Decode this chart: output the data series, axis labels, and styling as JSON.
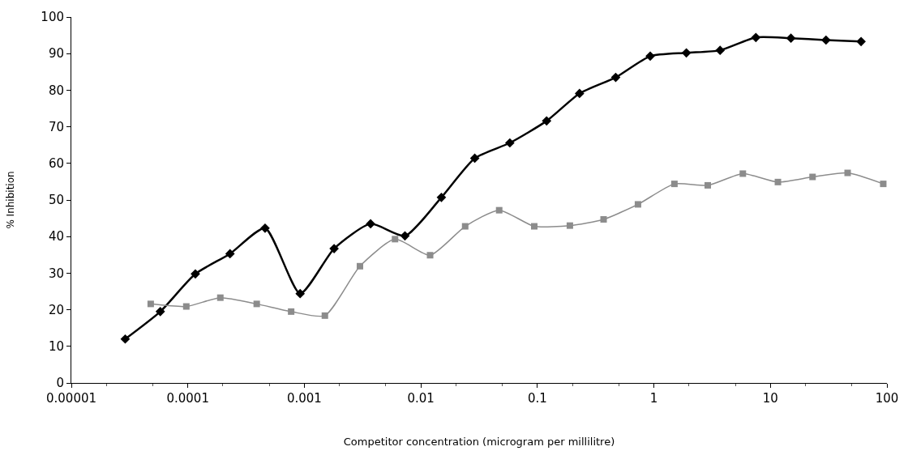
{
  "chart_data": {
    "type": "line",
    "xlabel": "Competitor concentration (microgram per millilitre)",
    "ylabel": "% Inhibition",
    "log": "x",
    "xlim": [
      1e-05,
      100
    ],
    "xticks": [
      {
        "value": 1e-05,
        "label": "0.00001"
      },
      0.0001,
      0.001,
      0.01,
      0.1,
      1,
      10,
      100
    ],
    "ylim": [
      0,
      100
    ],
    "yticks": [
      0,
      10,
      20,
      30,
      40,
      50,
      60,
      70,
      80,
      90,
      100
    ],
    "series": [
      {
        "color": "#000000",
        "marker": "diamond",
        "x": [
          2.9e-05,
          5.8e-05,
          0.000116,
          0.00023,
          0.00046,
          0.00092,
          0.0018,
          0.0037,
          0.0073,
          0.015,
          0.029,
          0.058,
          0.12,
          0.23,
          0.47,
          0.93,
          1.9,
          3.7,
          7.5,
          15,
          30,
          60
        ],
        "values": [
          12,
          19.5,
          29.8,
          35.3,
          42.3,
          24.4,
          36.7,
          43.5,
          40.2,
          50.7,
          61.4,
          65.6,
          71.6,
          79.1,
          83.5,
          89.3,
          90.2,
          90.9,
          94.4,
          94.2,
          93.7,
          93.3
        ]
      },
      {
        "color": "#8c8c8c",
        "marker": "square",
        "x": [
          4.8e-05,
          9.7e-05,
          0.00019,
          0.00039,
          0.00077,
          0.0015,
          0.003,
          0.006,
          0.012,
          0.024,
          0.047,
          0.094,
          0.19,
          0.37,
          0.73,
          1.5,
          2.9,
          5.8,
          11.6,
          23,
          46,
          93
        ],
        "values": [
          21.6,
          20.9,
          23.3,
          21.6,
          19.5,
          18.4,
          31.9,
          39.3,
          34.9,
          42.8,
          47.2,
          42.8,
          43,
          44.7,
          48.8,
          54.4,
          54,
          57.2,
          54.9,
          56.3,
          57.4,
          54.4
        ]
      }
    ]
  }
}
